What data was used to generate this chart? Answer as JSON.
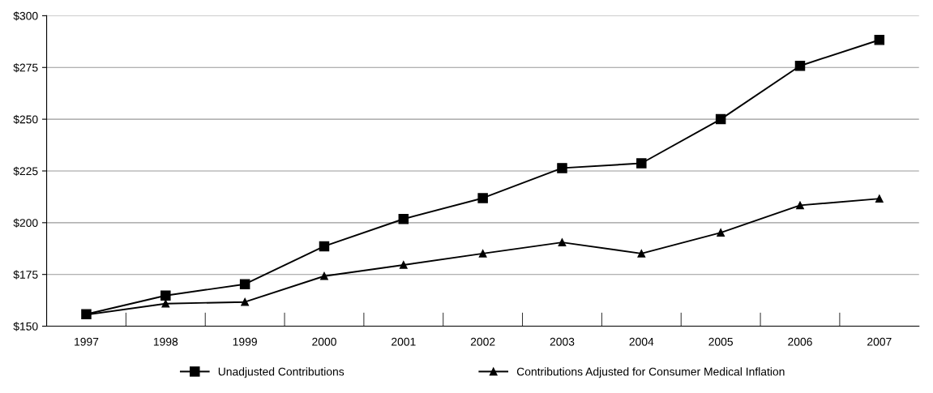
{
  "chart_data": {
    "type": "line",
    "categories": [
      "1997",
      "1998",
      "1999",
      "2000",
      "2001",
      "2002",
      "2003",
      "2004",
      "2005",
      "2006",
      "2007"
    ],
    "series": [
      {
        "name": "Unadjusted Contributions",
        "color": "#000000",
        "marker": "square",
        "values": [
          155.8,
          164.8,
          170.3,
          188.6,
          201.8,
          211.9,
          226.4,
          228.7,
          250.0,
          275.8,
          288.3
        ]
      },
      {
        "name": "Contributions Adjusted for Consumer Medical Inflation",
        "color": "#000000",
        "marker": "triangle",
        "values": [
          155.5,
          160.9,
          161.7,
          174.2,
          179.6,
          185.1,
          190.5,
          185.1,
          195.2,
          208.4,
          211.6
        ]
      }
    ],
    "ylim": [
      150,
      300
    ],
    "yticks": [
      {
        "value": 150,
        "label": "$150"
      },
      {
        "value": 175,
        "label": "$175"
      },
      {
        "value": 200,
        "label": "$200"
      },
      {
        "value": 225,
        "label": "$225"
      },
      {
        "value": 250,
        "label": "$250"
      },
      {
        "value": 275,
        "label": "$275"
      },
      {
        "value": 300,
        "label": "$300"
      }
    ],
    "grid": "y",
    "legend": "bottom",
    "line_style": "solid"
  }
}
